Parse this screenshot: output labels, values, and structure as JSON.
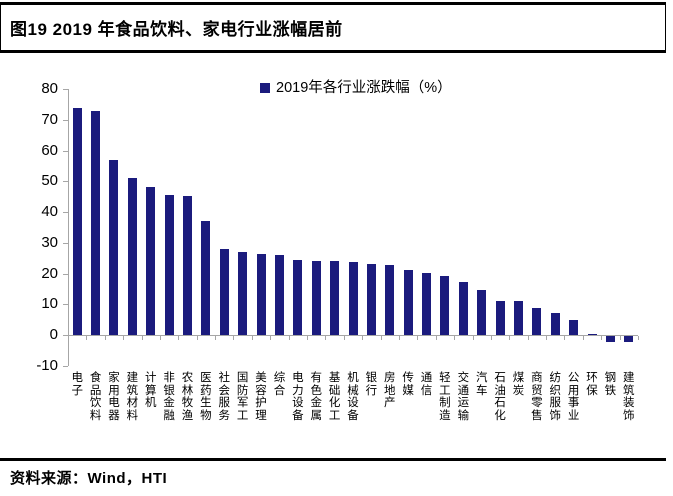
{
  "figure": {
    "title": "图19 2019 年食品饮料、家电行业涨幅居前",
    "source": "资料来源：Wind，HTI"
  },
  "chart_data": {
    "type": "bar",
    "title": "图19 2019 年食品饮料、家电行业涨幅居前",
    "legend": [
      "2019年各行业涨跌幅（%）"
    ],
    "legend_position": "top-center",
    "xlabel": "",
    "ylabel": "",
    "categories": [
      "电子",
      "食品饮料",
      "家用电器",
      "建筑材料",
      "计算机",
      "非银金融",
      "农林牧渔",
      "医药生物",
      "社会服务",
      "国防军工",
      "美容护理",
      "综合",
      "电力设备",
      "有色金属",
      "基础化工",
      "机械设备",
      "银行",
      "房地产",
      "传媒",
      "通信",
      "轻工制造",
      "交通运输",
      "汽车",
      "石油石化",
      "煤炭",
      "商贸零售",
      "纺织服饰",
      "公用事业",
      "环保",
      "钢铁",
      "建筑装饰"
    ],
    "values": [
      73.8,
      72.9,
      57.0,
      51.0,
      48.2,
      45.6,
      45.3,
      37.0,
      27.9,
      27.1,
      26.3,
      26.1,
      24.5,
      24.2,
      24.1,
      23.8,
      23.2,
      22.8,
      21.2,
      20.2,
      19.3,
      17.3,
      14.6,
      11.2,
      11.1,
      8.7,
      7.1,
      5.1,
      0.5,
      -2.0,
      -1.9
    ],
    "ylim": [
      -10,
      80
    ],
    "yticks": [
      80,
      70,
      60,
      50,
      40,
      30,
      20,
      10,
      0,
      -10
    ],
    "grid": false,
    "bar_color": "#1b1b7d",
    "axis_color": "#a6a6a6",
    "text_color": "#000000"
  }
}
